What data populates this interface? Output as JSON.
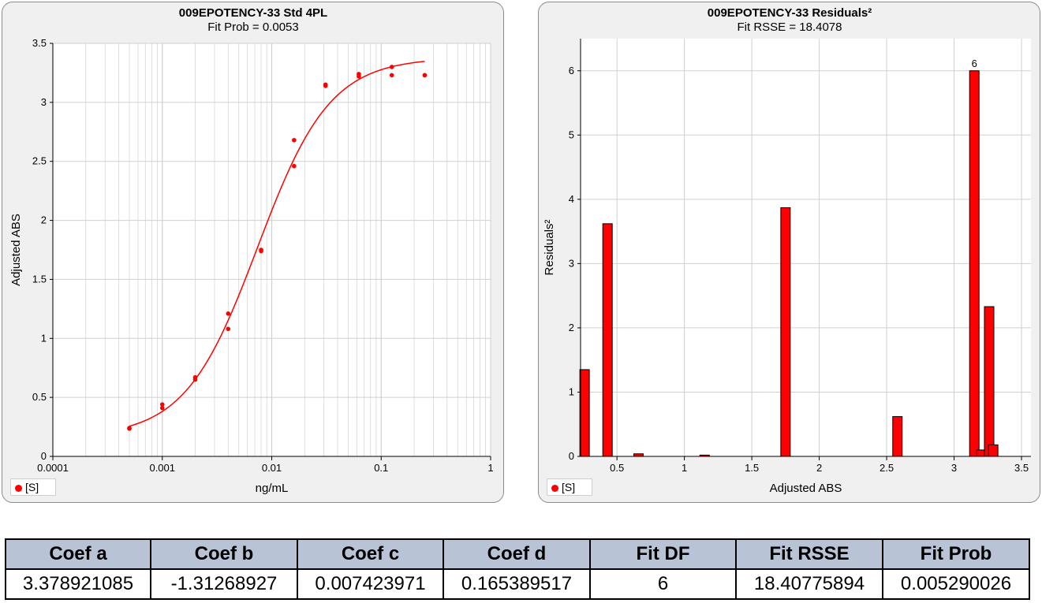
{
  "colors": {
    "series": "#ff0000",
    "panel_bg": "#f0f0f0",
    "grid": "#d0d0d0",
    "table_header": "#b8c4d6"
  },
  "legend_label": "[S]",
  "chart_data": [
    {
      "type": "scatter",
      "title": "009EPOTENCY-33 Std 4PL",
      "subtitle": "Fit Prob = 0.0053",
      "xlabel": "ng/mL",
      "ylabel": "Adjusted ABS",
      "xscale": "log",
      "xlim": [
        0.0001,
        1
      ],
      "ylim": [
        0,
        3.5
      ],
      "xticks": [
        "0.0001",
        "0.001",
        "0.01",
        "0.1",
        "1"
      ],
      "yticks": [
        "0",
        "0.5",
        "1",
        "1.5",
        "2",
        "2.5",
        "3",
        "3.5"
      ],
      "grid": true,
      "legend": "bottom-left",
      "series": [
        {
          "name": "[S]",
          "points": [
            [
              0.0005,
              0.235
            ],
            [
              0.0005,
              0.24
            ],
            [
              0.001,
              0.41
            ],
            [
              0.001,
              0.44
            ],
            [
              0.002,
              0.65
            ],
            [
              0.002,
              0.67
            ],
            [
              0.004,
              1.08
            ],
            [
              0.004,
              1.21
            ],
            [
              0.008,
              1.74
            ],
            [
              0.008,
              1.75
            ],
            [
              0.016,
              2.46
            ],
            [
              0.016,
              2.68
            ],
            [
              0.031,
              3.14
            ],
            [
              0.031,
              3.15
            ],
            [
              0.0625,
              3.22
            ],
            [
              0.0625,
              3.24
            ],
            [
              0.125,
              3.23
            ],
            [
              0.125,
              3.3
            ],
            [
              0.25,
              3.23
            ],
            [
              0.25,
              3.23
            ]
          ]
        }
      ],
      "fit": {
        "model": "4PL",
        "a": 3.378921085,
        "b": -1.31268927,
        "c": 0.007423971,
        "d": 0.165389517,
        "x_range": [
          0.0005,
          0.25
        ]
      }
    },
    {
      "type": "bar",
      "title": "009EPOTENCY-33 Residuals²",
      "subtitle": "Fit RSSE = 18.4078",
      "xlabel": "Adjusted ABS",
      "ylabel": "Residuals²",
      "xlim": [
        0.23,
        3.57
      ],
      "ylim": [
        0,
        6.5
      ],
      "xticks": [
        "0.5",
        "1",
        "1.5",
        "2",
        "2.5",
        "3",
        "3.5"
      ],
      "yticks": [
        "0",
        "1",
        "2",
        "3",
        "4",
        "5",
        "6"
      ],
      "grid": true,
      "legend": "bottom-left",
      "bar_width": 0.07,
      "bars": [
        {
          "x": 0.26,
          "y": 1.35
        },
        {
          "x": 0.43,
          "y": 3.62
        },
        {
          "x": 0.66,
          "y": 0.04
        },
        {
          "x": 1.15,
          "y": 0.02
        },
        {
          "x": 1.75,
          "y": 3.87
        },
        {
          "x": 2.58,
          "y": 0.62
        },
        {
          "x": 3.15,
          "y": 6.0,
          "label": "6"
        },
        {
          "x": 3.2,
          "y": 0.1
        },
        {
          "x": 3.26,
          "y": 2.33
        },
        {
          "x": 3.29,
          "y": 0.18
        }
      ]
    }
  ],
  "table": {
    "headers": [
      "Coef a",
      "Coef b",
      "Coef c",
      "Coef d",
      "Fit DF",
      "Fit RSSE",
      "Fit Prob"
    ],
    "values": [
      "3.378921085",
      "-1.31268927",
      "0.007423971",
      "0.165389517",
      "6",
      "18.40775894",
      "0.005290026"
    ]
  }
}
